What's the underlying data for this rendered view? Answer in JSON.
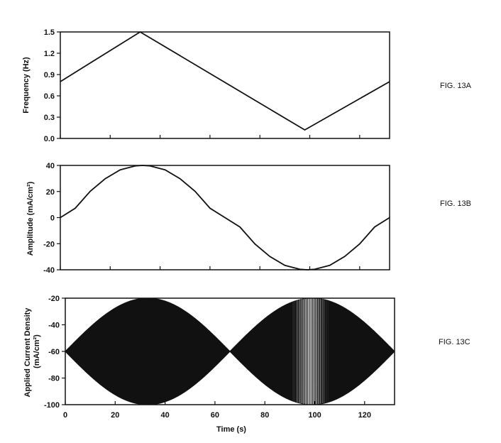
{
  "chart_data": [
    {
      "id": "fig13a",
      "type": "line",
      "figure_label": "FIG. 13A",
      "ylabel": "Frequency (Hz)",
      "xlim": [
        0,
        132
      ],
      "ylim": [
        0,
        1.5
      ],
      "yticks": [
        0,
        0.3,
        0.6,
        0.9,
        1.2,
        1.5
      ],
      "ytick_labels": [
        "0.0",
        "0.3",
        "0.6",
        "0.9",
        "1.2",
        "1.5"
      ],
      "series": [
        {
          "x": [
            0,
            32,
            98,
            132
          ],
          "y": [
            0.8,
            1.5,
            0.12,
            0.8
          ]
        }
      ]
    },
    {
      "id": "fig13b",
      "type": "line",
      "figure_label": "FIG. 13B",
      "ylabel": "Amplitude (mA/cm²)",
      "xlim": [
        0,
        132
      ],
      "ylim": [
        -40,
        40
      ],
      "yticks": [
        -40,
        -20,
        0,
        20,
        40
      ],
      "ytick_labels": [
        "-40",
        "-20",
        "0",
        "20",
        "40"
      ],
      "series": [
        {
          "x": [
            0,
            6,
            12,
            18,
            24,
            30,
            33,
            36,
            42,
            48,
            54,
            60,
            66,
            72,
            78,
            84,
            90,
            96,
            99,
            102,
            108,
            114,
            120,
            126,
            132
          ],
          "y": [
            0,
            7.2,
            20.2,
            29.8,
            36.6,
            39.6,
            40,
            39.6,
            36.6,
            29.8,
            20.2,
            7.2,
            0,
            -7.2,
            -20.2,
            -29.8,
            -36.6,
            -39.6,
            -40,
            -39.6,
            -36.6,
            -29.8,
            -20.2,
            -7.2,
            0
          ]
        }
      ]
    },
    {
      "id": "fig13c",
      "type": "line",
      "figure_label": "FIG. 13C",
      "ylabel": "Applied Current Density (mA/cm²)",
      "ylabel_lines": [
        "Applied Current Density",
        "(mA/cm²)"
      ],
      "xlabel": "Time (s)",
      "xlim": [
        0,
        132
      ],
      "ylim": [
        -100,
        -20
      ],
      "xticks": [
        0,
        20,
        40,
        60,
        80,
        100,
        120
      ],
      "xtick_labels": [
        "0",
        "20",
        "40",
        "60",
        "80",
        "100",
        "120"
      ],
      "yticks": [
        -100,
        -80,
        -60,
        -40,
        -20
      ],
      "ytick_labels": [
        "-100",
        "-80",
        "-60",
        "-40",
        "-20"
      ],
      "signal": {
        "offset": -60,
        "amplitude_max": 40,
        "envelope_period": 132,
        "frequency_profile": {
          "x": [
            0,
            32,
            98,
            132
          ],
          "y": [
            0.8,
            1.5,
            0.12,
            0.8
          ]
        }
      }
    }
  ]
}
